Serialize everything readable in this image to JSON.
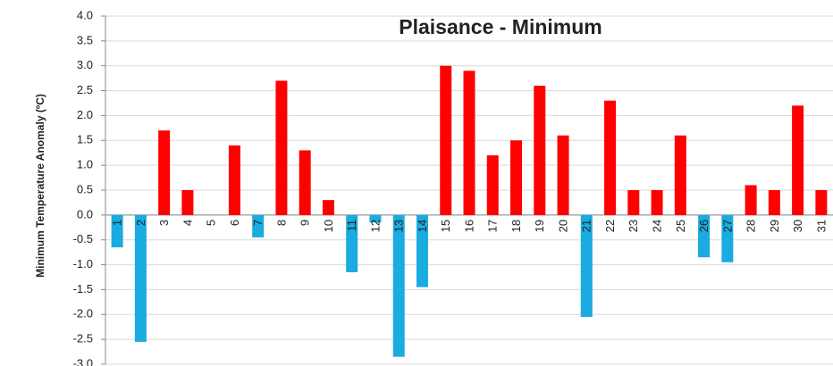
{
  "chart_data": {
    "type": "bar",
    "title": "Plaisance - Minimum",
    "y_label": "Minimum Temperature Anomaly (ºC)",
    "categories": [
      "1",
      "2",
      "3",
      "4",
      "5",
      "6",
      "7",
      "8",
      "9",
      "10",
      "11",
      "12",
      "13",
      "14",
      "15",
      "16",
      "17",
      "18",
      "19",
      "20",
      "21",
      "22",
      "23",
      "24",
      "25",
      "26",
      "27",
      "28",
      "29",
      "30",
      "31"
    ],
    "values": [
      -0.65,
      -2.55,
      1.7,
      0.5,
      0,
      1.4,
      -0.45,
      2.7,
      1.3,
      0.3,
      -1.15,
      -0.15,
      -2.85,
      -1.45,
      3.0,
      2.9,
      1.2,
      1.5,
      2.6,
      1.6,
      -2.05,
      2.3,
      0.5,
      0.5,
      1.6,
      -0.85,
      -0.95,
      0.6,
      0.5,
      2.2,
      0.5
    ],
    "positive_color": "#ff0000",
    "negative_color": "#1aabe0",
    "ylim": [
      -3,
      4
    ],
    "yticks": [
      {
        "value": -3,
        "label": "-3.0"
      },
      -2.5,
      {
        "value": -2,
        "label": "-2.0"
      },
      -1.5,
      {
        "value": -1,
        "label": "-1.0"
      },
      -0.5,
      {
        "value": 0,
        "label": "0.0"
      },
      0.5,
      {
        "value": 1,
        "label": "1.0"
      },
      1.5,
      {
        "value": 2,
        "label": "2.0"
      },
      2.5,
      {
        "value": 3,
        "label": "3.0"
      },
      3.5,
      {
        "value": 4,
        "label": "4.0"
      }
    ],
    "grid": true
  }
}
